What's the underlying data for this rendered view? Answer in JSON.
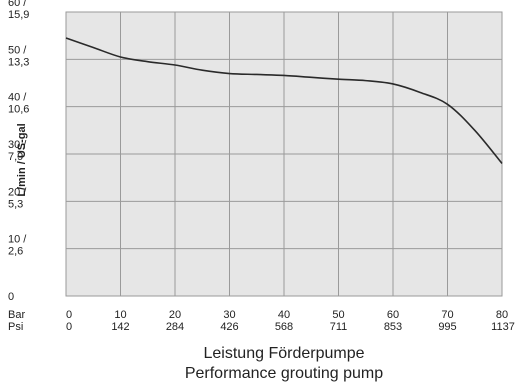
{
  "chart_data": {
    "type": "line",
    "title": "Leistung Förderpumpe",
    "subtitle": "Performance grouting pump",
    "ylabel": "L/min / US-gal",
    "x_row_labels": [
      "Bar",
      "Psi"
    ],
    "x": [
      0,
      10,
      20,
      30,
      40,
      50,
      60,
      70,
      80
    ],
    "x_psi_labels": [
      "0",
      "142",
      "284",
      "426",
      "568",
      "711",
      "853",
      "995",
      "1137"
    ],
    "xlim": [
      0,
      80
    ],
    "y_ticks": [
      0,
      10,
      20,
      30,
      40,
      50,
      60
    ],
    "y_tick_labels": [
      [
        "0"
      ],
      [
        "10 /",
        "2,6"
      ],
      [
        "20 /",
        "5,3"
      ],
      [
        "30 /",
        "7,9"
      ],
      [
        "40 /",
        "10,6"
      ],
      [
        "50 /",
        "13,3"
      ],
      [
        "60 /",
        "15,9"
      ]
    ],
    "ylim": [
      0,
      60
    ],
    "grid": true,
    "series": [
      {
        "x": [
          0,
          5,
          10,
          15,
          20,
          25,
          30,
          35,
          40,
          45,
          50,
          55,
          60,
          65,
          70,
          75,
          80
        ],
        "values": [
          54.5,
          52.5,
          50.5,
          49.5,
          48.8,
          47.7,
          47.0,
          46.8,
          46.6,
          46.2,
          45.8,
          45.5,
          44.8,
          43.0,
          40.5,
          35.0,
          28.0
        ]
      }
    ]
  }
}
